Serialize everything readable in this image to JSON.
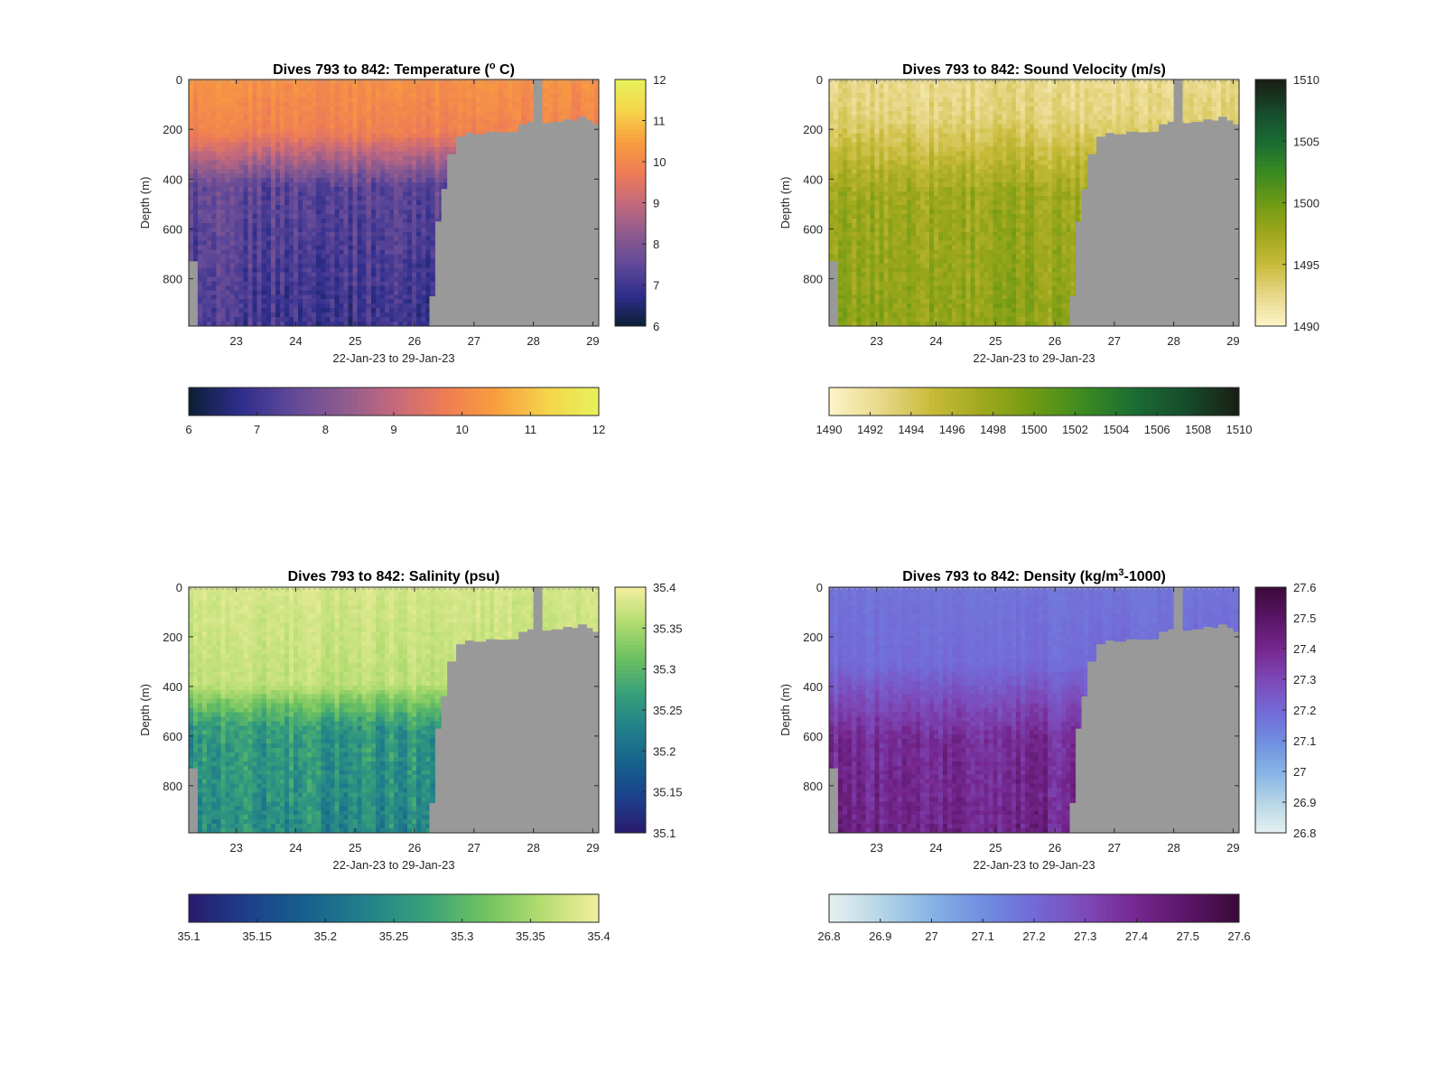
{
  "figure": {
    "background": "#ffffff",
    "mask_color": "#999999",
    "axis_color": "#262626"
  },
  "chart_data": [
    {
      "type": "heatmap",
      "variable": "temperature",
      "title": "Dives 793 to 842: Temperature (° C)",
      "xlabel": "22-Jan-23 to 29-Jan-23",
      "ylabel": "Depth (m)",
      "xlim": [
        22.2,
        29.1
      ],
      "ylim": [
        990,
        0
      ],
      "xticks": [
        23,
        24,
        25,
        26,
        27,
        28,
        29
      ],
      "yticks": [
        0,
        200,
        400,
        600,
        800
      ],
      "clim": [
        6,
        12
      ],
      "colorbar_ticks": [
        6,
        7,
        8,
        9,
        10,
        11,
        12
      ],
      "colorbar_h_ticks": [
        6,
        7,
        8,
        9,
        10,
        11,
        12
      ],
      "colormap": [
        "#0b1f33",
        "#2e2d8c",
        "#604898",
        "#8d5b8f",
        "#c4697d",
        "#ef7c55",
        "#f99e3e",
        "#f5d54b",
        "#e6f25a"
      ],
      "surface_range": [
        10.2,
        10.6
      ],
      "deep_range": [
        7.0,
        8.0
      ],
      "thermocline_depth": [
        200,
        420
      ],
      "mask_depth": [
        [
          22.2,
          730
        ],
        [
          22.35,
          990
        ],
        [
          26.2,
          990
        ],
        [
          26.25,
          870
        ],
        [
          26.35,
          570
        ],
        [
          26.45,
          440
        ],
        [
          26.55,
          300
        ],
        [
          26.7,
          230
        ],
        [
          26.85,
          215
        ],
        [
          27.0,
          220
        ],
        [
          27.2,
          210
        ],
        [
          27.4,
          212
        ],
        [
          27.6,
          210
        ],
        [
          27.75,
          180
        ],
        [
          27.9,
          170
        ],
        [
          28.0,
          0
        ],
        [
          28.15,
          175
        ],
        [
          28.3,
          170
        ],
        [
          28.5,
          160
        ],
        [
          28.65,
          165
        ],
        [
          28.75,
          150
        ],
        [
          28.9,
          165
        ],
        [
          29.0,
          180
        ],
        [
          29.1,
          180
        ]
      ]
    },
    {
      "type": "heatmap",
      "variable": "sound_velocity",
      "title": "Dives 793 to 842: Sound Velocity (m/s)",
      "xlabel": "22-Jan-23 to 29-Jan-23",
      "ylabel": "Depth (m)",
      "xlim": [
        22.2,
        29.1
      ],
      "ylim": [
        990,
        0
      ],
      "xticks": [
        23,
        24,
        25,
        26,
        27,
        28,
        29
      ],
      "yticks": [
        0,
        200,
        400,
        600,
        800
      ],
      "clim": [
        1490,
        1510
      ],
      "colorbar_ticks": [
        1490,
        1495,
        1500,
        1505,
        1510
      ],
      "colorbar_h_ticks": [
        1490,
        1492,
        1494,
        1496,
        1498,
        1500,
        1502,
        1504,
        1506,
        1508,
        1510
      ],
      "colormap": [
        "#fdf4c9",
        "#e9d88a",
        "#c8bb3a",
        "#9fa81c",
        "#6f9a14",
        "#3a8a22",
        "#1a6b33",
        "#164a2b",
        "#1a1d14"
      ],
      "surface_range": [
        1492.5,
        1494.5
      ],
      "deep_range": [
        1498.5,
        1501.5
      ],
      "thermocline_depth": [
        150,
        450
      ],
      "mask_depth": [
        [
          22.2,
          730
        ],
        [
          22.35,
          990
        ],
        [
          26.2,
          990
        ],
        [
          26.25,
          870
        ],
        [
          26.35,
          570
        ],
        [
          26.45,
          440
        ],
        [
          26.55,
          300
        ],
        [
          26.7,
          230
        ],
        [
          26.85,
          215
        ],
        [
          27.0,
          220
        ],
        [
          27.2,
          210
        ],
        [
          27.4,
          212
        ],
        [
          27.6,
          210
        ],
        [
          27.75,
          180
        ],
        [
          27.9,
          170
        ],
        [
          28.0,
          0
        ],
        [
          28.15,
          175
        ],
        [
          28.3,
          170
        ],
        [
          28.5,
          160
        ],
        [
          28.65,
          165
        ],
        [
          28.75,
          150
        ],
        [
          28.9,
          165
        ],
        [
          29.0,
          180
        ],
        [
          29.1,
          180
        ]
      ]
    },
    {
      "type": "heatmap",
      "variable": "salinity",
      "title": "Dives 793 to 842: Salinity (psu)",
      "xlabel": "22-Jan-23 to 29-Jan-23",
      "ylabel": "Depth (m)",
      "xlim": [
        22.2,
        29.1
      ],
      "ylim": [
        990,
        0
      ],
      "xticks": [
        23,
        24,
        25,
        26,
        27,
        28,
        29
      ],
      "yticks": [
        0,
        200,
        400,
        600,
        800
      ],
      "clim": [
        35.1,
        35.4
      ],
      "colorbar_ticks": [
        35.1,
        35.15,
        35.2,
        35.25,
        35.3,
        35.35,
        35.4
      ],
      "colorbar_h_ticks": [
        35.1,
        35.15,
        35.2,
        35.25,
        35.3,
        35.35,
        35.4
      ],
      "colormap": [
        "#2a1a6e",
        "#1d3f8c",
        "#15618c",
        "#22808a",
        "#38a07a",
        "#6cc160",
        "#b2dc70",
        "#f3ef9e"
      ],
      "surface_range": [
        35.38,
        35.4
      ],
      "deep_range": [
        35.24,
        35.31
      ],
      "thermocline_depth": [
        380,
        560
      ],
      "mask_depth": [
        [
          22.2,
          730
        ],
        [
          22.35,
          990
        ],
        [
          26.2,
          990
        ],
        [
          26.25,
          870
        ],
        [
          26.35,
          570
        ],
        [
          26.45,
          440
        ],
        [
          26.55,
          300
        ],
        [
          26.7,
          230
        ],
        [
          26.85,
          215
        ],
        [
          27.0,
          220
        ],
        [
          27.2,
          210
        ],
        [
          27.4,
          212
        ],
        [
          27.6,
          210
        ],
        [
          27.75,
          180
        ],
        [
          27.9,
          170
        ],
        [
          28.0,
          0
        ],
        [
          28.15,
          175
        ],
        [
          28.3,
          170
        ],
        [
          28.5,
          160
        ],
        [
          28.65,
          165
        ],
        [
          28.75,
          150
        ],
        [
          28.9,
          165
        ],
        [
          29.0,
          180
        ],
        [
          29.1,
          180
        ]
      ]
    },
    {
      "type": "heatmap",
      "variable": "density",
      "title": "Dives 793 to 842: Density (kg/m³-1000)",
      "xlabel": "22-Jan-23 to 29-Jan-23",
      "ylabel": "Depth (m)",
      "xlim": [
        22.2,
        29.1
      ],
      "ylim": [
        990,
        0
      ],
      "xticks": [
        23,
        24,
        25,
        26,
        27,
        28,
        29
      ],
      "yticks": [
        0,
        200,
        400,
        600,
        800
      ],
      "clim": [
        26.8,
        27.6
      ],
      "colorbar_ticks": [
        26.8,
        26.9,
        27,
        27.1,
        27.2,
        27.3,
        27.4,
        27.5,
        27.6
      ],
      "colorbar_h_ticks": [
        26.8,
        26.9,
        27,
        27.1,
        27.2,
        27.3,
        27.4,
        27.5,
        27.6
      ],
      "colormap": [
        "#e6f1f0",
        "#b6d6e6",
        "#86b3e6",
        "#6f8ee0",
        "#7369d6",
        "#7d49b8",
        "#75278f",
        "#5a1566",
        "#3a0a38"
      ],
      "surface_range": [
        27.17,
        27.2
      ],
      "deep_range": [
        27.42,
        27.55
      ],
      "thermocline_depth": [
        300,
        600
      ],
      "mask_depth": [
        [
          22.2,
          730
        ],
        [
          22.35,
          990
        ],
        [
          26.2,
          990
        ],
        [
          26.25,
          870
        ],
        [
          26.35,
          570
        ],
        [
          26.45,
          440
        ],
        [
          26.55,
          300
        ],
        [
          26.7,
          230
        ],
        [
          26.85,
          215
        ],
        [
          27.0,
          220
        ],
        [
          27.2,
          210
        ],
        [
          27.4,
          212
        ],
        [
          27.6,
          210
        ],
        [
          27.75,
          180
        ],
        [
          27.9,
          170
        ],
        [
          28.0,
          0
        ],
        [
          28.15,
          175
        ],
        [
          28.3,
          170
        ],
        [
          28.5,
          160
        ],
        [
          28.65,
          165
        ],
        [
          28.75,
          150
        ],
        [
          28.9,
          165
        ],
        [
          29.0,
          180
        ],
        [
          29.1,
          180
        ]
      ]
    }
  ]
}
